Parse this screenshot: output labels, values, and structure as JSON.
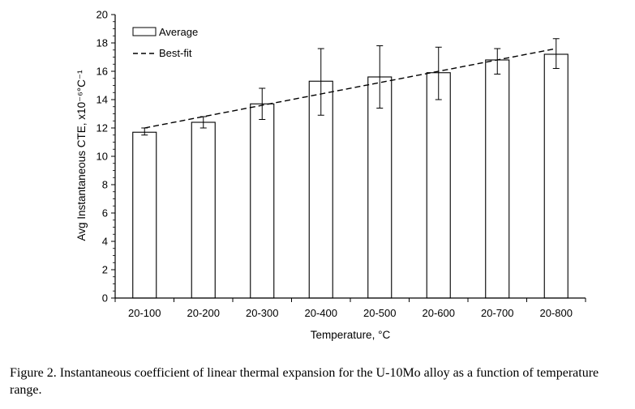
{
  "chart_data": {
    "type": "bar",
    "title": "",
    "xlabel": "Temperature, °C",
    "ylabel": "Avg Instantaneous CTE, x10⁻⁶°C⁻¹",
    "ylim": [
      0,
      20
    ],
    "y_ticks": [
      "0",
      "2",
      "4",
      "6",
      "8",
      "10",
      "12",
      "14",
      "16",
      "18",
      "20"
    ],
    "grid": false,
    "legend_position": "top-left",
    "categories": [
      "20-100",
      "20-200",
      "20-300",
      "20-400",
      "20-500",
      "20-600",
      "20-700",
      "20-800"
    ],
    "series": [
      {
        "name": "Average",
        "kind": "bar",
        "values": [
          11.7,
          12.4,
          13.7,
          15.3,
          15.6,
          15.9,
          16.8,
          17.2
        ],
        "error_low": [
          11.5,
          12.0,
          12.6,
          12.9,
          13.4,
          14.0,
          15.8,
          16.2
        ],
        "error_high": [
          12.0,
          12.8,
          14.8,
          17.6,
          17.8,
          17.7,
          17.6,
          18.3
        ]
      },
      {
        "name": "Best-fit",
        "kind": "dashed-line",
        "values": [
          12.0,
          12.8,
          13.6,
          14.4,
          15.2,
          16.0,
          16.8,
          17.6
        ]
      }
    ]
  },
  "caption": "Figure 2. Instantaneous coefficient of linear thermal expansion for the U-10Mo alloy as a function of temperature range."
}
